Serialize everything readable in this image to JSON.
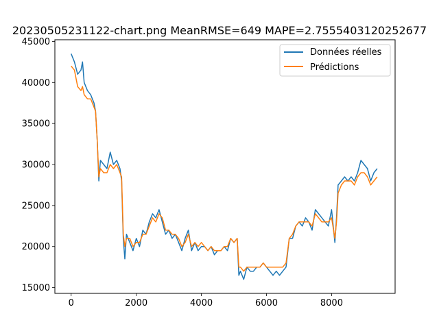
{
  "chart_data": {
    "type": "line",
    "title": "20230505231122-chart.png MeanRMSE=649 MAPE=2.7555403120252677",
    "xlabel": "",
    "ylabel": "",
    "xlim": [
      -500,
      9950
    ],
    "ylim": [
      14300,
      45200
    ],
    "x_ticks": [
      0,
      2000,
      4000,
      6000,
      8000
    ],
    "x_tick_labels": [
      "0",
      "2000",
      "4000",
      "6000",
      "8000"
    ],
    "y_ticks": [
      15000,
      20000,
      25000,
      30000,
      35000,
      40000,
      45000
    ],
    "y_tick_labels": [
      "15000",
      "20000",
      "25000",
      "30000",
      "35000",
      "40000",
      "45000"
    ],
    "grid": false,
    "legend_position": "top-right",
    "series": [
      {
        "name": "Données réelles",
        "color": "#1f77b4",
        "x": [
          0,
          100,
          200,
          300,
          350,
          400,
          500,
          600,
          700,
          750,
          800,
          850,
          900,
          1000,
          1100,
          1200,
          1300,
          1400,
          1500,
          1550,
          1600,
          1650,
          1700,
          1800,
          1900,
          2000,
          2100,
          2200,
          2300,
          2400,
          2500,
          2600,
          2700,
          2800,
          2900,
          3000,
          3100,
          3200,
          3300,
          3400,
          3500,
          3600,
          3700,
          3800,
          3900,
          4000,
          4100,
          4200,
          4300,
          4400,
          4500,
          4600,
          4700,
          4800,
          4900,
          5000,
          5100,
          5150,
          5200,
          5300,
          5400,
          5500,
          5600,
          5700,
          5800,
          5900,
          6000,
          6100,
          6200,
          6300,
          6400,
          6500,
          6600,
          6700,
          6800,
          6900,
          7000,
          7100,
          7200,
          7300,
          7400,
          7500,
          7600,
          7700,
          7800,
          7900,
          8000,
          8100,
          8150,
          8200,
          8300,
          8400,
          8500,
          8600,
          8700,
          8800,
          8900,
          9000,
          9100,
          9200,
          9300,
          9400
        ],
        "values": [
          43500,
          42500,
          41000,
          41500,
          42500,
          40000,
          39000,
          38500,
          37500,
          36500,
          33000,
          28000,
          30500,
          30000,
          29500,
          31500,
          30000,
          30500,
          29500,
          28000,
          21000,
          18500,
          21500,
          20500,
          19500,
          21000,
          20000,
          22000,
          21500,
          23000,
          24000,
          23500,
          24500,
          23000,
          21500,
          22000,
          21000,
          21500,
          20500,
          19500,
          21000,
          22000,
          19500,
          20500,
          19500,
          20000,
          20000,
          19500,
          20000,
          19000,
          19500,
          19500,
          20000,
          19500,
          21000,
          20500,
          21000,
          16500,
          17000,
          16000,
          17500,
          17000,
          17000,
          17500,
          17500,
          18000,
          17500,
          17000,
          16500,
          17000,
          16500,
          17000,
          17500,
          21000,
          21000,
          22500,
          23000,
          22500,
          23500,
          23000,
          22000,
          24500,
          24000,
          23500,
          23000,
          22500,
          24500,
          20500,
          23500,
          27500,
          28000,
          28500,
          28000,
          28500,
          28000,
          29000,
          30500,
          30000,
          29500,
          28000,
          29000,
          29500
        ]
      },
      {
        "name": "Prédictions",
        "color": "#ff7f0e",
        "x": [
          0,
          100,
          200,
          300,
          350,
          400,
          500,
          600,
          700,
          750,
          800,
          850,
          900,
          1000,
          1100,
          1200,
          1300,
          1400,
          1500,
          1550,
          1600,
          1650,
          1700,
          1800,
          1900,
          2000,
          2100,
          2200,
          2300,
          2400,
          2500,
          2600,
          2700,
          2800,
          2900,
          3000,
          3100,
          3200,
          3300,
          3400,
          3500,
          3600,
          3700,
          3800,
          3900,
          4000,
          4100,
          4200,
          4300,
          4400,
          4500,
          4600,
          4700,
          4800,
          4900,
          5000,
          5100,
          5150,
          5200,
          5300,
          5400,
          5500,
          5600,
          5700,
          5800,
          5900,
          6000,
          6100,
          6200,
          6300,
          6400,
          6500,
          6600,
          6700,
          6800,
          6900,
          7000,
          7100,
          7200,
          7300,
          7400,
          7500,
          7600,
          7700,
          7800,
          7900,
          8000,
          8100,
          8150,
          8200,
          8300,
          8400,
          8500,
          8600,
          8700,
          8800,
          8900,
          9000,
          9100,
          9200,
          9300,
          9400
        ],
        "values": [
          42000,
          41500,
          39500,
          39000,
          39500,
          38500,
          38000,
          38000,
          37000,
          36500,
          33000,
          28500,
          29500,
          29000,
          29000,
          30000,
          29500,
          30000,
          29000,
          28500,
          21500,
          20000,
          21000,
          21000,
          20000,
          20500,
          20500,
          21500,
          21500,
          22500,
          23500,
          23000,
          24000,
          23500,
          22000,
          22000,
          21500,
          21500,
          21000,
          20000,
          20500,
          21500,
          20000,
          20500,
          20000,
          20500,
          20000,
          19500,
          20000,
          19500,
          19500,
          19500,
          20000,
          20000,
          21000,
          20500,
          21000,
          17500,
          17500,
          17000,
          17500,
          17500,
          17500,
          17500,
          17500,
          18000,
          17500,
          17500,
          17500,
          17500,
          17500,
          17500,
          18000,
          21000,
          21500,
          22500,
          23000,
          23000,
          23000,
          23000,
          22500,
          24000,
          23500,
          23000,
          23000,
          23000,
          23500,
          21000,
          23000,
          26500,
          27500,
          28000,
          28000,
          28000,
          27500,
          28500,
          29000,
          29000,
          28500,
          27500,
          28000,
          28500
        ]
      }
    ]
  }
}
